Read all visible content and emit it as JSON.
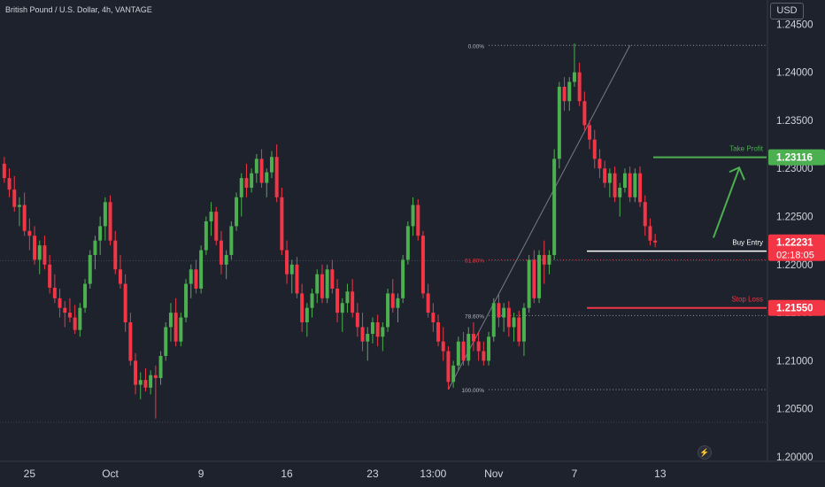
{
  "header": {
    "symbol_title": "British Pound / U.S. Dollar, 4h, VANTAGE",
    "currency": "USD"
  },
  "chart_data": {
    "type": "candlestick",
    "title": "British Pound / U.S. Dollar, 4h, VANTAGE",
    "ylim": [
      1.2,
      1.2466
    ],
    "y_ticks": [
      "1.24500",
      "1.24000",
      "1.23500",
      "1.23000",
      "1.22500",
      "1.22000",
      "1.21500",
      "1.21000",
      "1.20500",
      "1.20000"
    ],
    "y_tick_values": [
      1.245,
      1.24,
      1.235,
      1.23,
      1.225,
      1.22,
      1.215,
      1.21,
      1.205,
      1.2
    ],
    "x_ticks": [
      "25",
      "Oct",
      "9",
      "16",
      "23",
      "13:00",
      "Nov",
      "7",
      "13"
    ],
    "x_tick_candle_index": [
      5,
      21,
      39,
      56,
      73,
      85,
      97,
      113,
      130
    ],
    "candle_count": 140,
    "candles_ohlc": [
      [
        1.2305,
        1.2312,
        1.2285,
        1.229
      ],
      [
        1.229,
        1.23,
        1.227,
        1.2278
      ],
      [
        1.2278,
        1.2292,
        1.2255,
        1.226
      ],
      [
        1.226,
        1.227,
        1.224,
        1.2262
      ],
      [
        1.2262,
        1.2275,
        1.223,
        1.2235
      ],
      [
        1.2235,
        1.2248,
        1.2215,
        1.223
      ],
      [
        1.223,
        1.224,
        1.22,
        1.2205
      ],
      [
        1.2205,
        1.2225,
        1.219,
        1.222
      ],
      [
        1.222,
        1.223,
        1.2195,
        1.22
      ],
      [
        1.22,
        1.221,
        1.217,
        1.2176
      ],
      [
        1.2176,
        1.219,
        1.216,
        1.2165
      ],
      [
        1.2165,
        1.2175,
        1.2145,
        1.2155
      ],
      [
        1.2155,
        1.2162,
        1.2135,
        1.215
      ],
      [
        1.215,
        1.2165,
        1.214,
        1.2145
      ],
      [
        1.2145,
        1.2158,
        1.2128,
        1.2132
      ],
      [
        1.2132,
        1.216,
        1.2125,
        1.2155
      ],
      [
        1.2155,
        1.2185,
        1.215,
        1.218
      ],
      [
        1.218,
        1.2215,
        1.2175,
        1.221
      ],
      [
        1.221,
        1.223,
        1.2195,
        1.2225
      ],
      [
        1.2225,
        1.225,
        1.221,
        1.224
      ],
      [
        1.224,
        1.227,
        1.2225,
        1.2265
      ],
      [
        1.2265,
        1.2272,
        1.222,
        1.2225
      ],
      [
        1.2225,
        1.2235,
        1.219,
        1.2195
      ],
      [
        1.2195,
        1.221,
        1.2175,
        1.218
      ],
      [
        1.218,
        1.219,
        1.213,
        1.214
      ],
      [
        1.214,
        1.215,
        1.2095,
        1.21
      ],
      [
        1.21,
        1.2108,
        1.2065,
        1.2075
      ],
      [
        1.2075,
        1.2088,
        1.206,
        1.208
      ],
      [
        1.208,
        1.2092,
        1.2068,
        1.2072
      ],
      [
        1.2072,
        1.209,
        1.2065,
        1.2085
      ],
      [
        1.2085,
        1.2095,
        1.204,
        1.2082
      ],
      [
        1.2082,
        1.211,
        1.2075,
        1.2105
      ],
      [
        1.2105,
        1.214,
        1.21,
        1.2135
      ],
      [
        1.2135,
        1.216,
        1.212,
        1.215
      ],
      [
        1.215,
        1.2165,
        1.2115,
        1.212
      ],
      [
        1.212,
        1.215,
        1.2115,
        1.2145
      ],
      [
        1.2145,
        1.2185,
        1.214,
        1.218
      ],
      [
        1.218,
        1.22,
        1.2165,
        1.2195
      ],
      [
        1.2195,
        1.2205,
        1.217,
        1.2175
      ],
      [
        1.2175,
        1.222,
        1.217,
        1.2215
      ],
      [
        1.2215,
        1.225,
        1.221,
        1.2245
      ],
      [
        1.2245,
        1.2265,
        1.223,
        1.2255
      ],
      [
        1.2255,
        1.226,
        1.222,
        1.2225
      ],
      [
        1.2225,
        1.2235,
        1.219,
        1.22
      ],
      [
        1.22,
        1.2215,
        1.2185,
        1.221
      ],
      [
        1.221,
        1.2245,
        1.2205,
        1.224
      ],
      [
        1.224,
        1.2275,
        1.2235,
        1.227
      ],
      [
        1.227,
        1.2295,
        1.225,
        1.229
      ],
      [
        1.229,
        1.2305,
        1.227,
        1.228
      ],
      [
        1.228,
        1.23,
        1.2275,
        1.2295
      ],
      [
        1.2295,
        1.2315,
        1.2285,
        1.231
      ],
      [
        1.231,
        1.232,
        1.228,
        1.2285
      ],
      [
        1.2285,
        1.23,
        1.227,
        1.2296
      ],
      [
        1.2296,
        1.2318,
        1.229,
        1.2312
      ],
      [
        1.2312,
        1.2325,
        1.2265,
        1.227
      ],
      [
        1.227,
        1.228,
        1.221,
        1.2215
      ],
      [
        1.2215,
        1.2225,
        1.218,
        1.219
      ],
      [
        1.219,
        1.2205,
        1.217,
        1.22
      ],
      [
        1.22,
        1.2208,
        1.2165,
        1.217
      ],
      [
        1.217,
        1.218,
        1.213,
        1.214
      ],
      [
        1.214,
        1.216,
        1.2125,
        1.2155
      ],
      [
        1.2155,
        1.2175,
        1.2145,
        1.217
      ],
      [
        1.217,
        1.2195,
        1.216,
        1.219
      ],
      [
        1.219,
        1.22,
        1.216,
        1.2165
      ],
      [
        1.2165,
        1.22,
        1.216,
        1.2195
      ],
      [
        1.2195,
        1.2205,
        1.217,
        1.2175
      ],
      [
        1.2175,
        1.2185,
        1.214,
        1.215
      ],
      [
        1.215,
        1.2165,
        1.213,
        1.216
      ],
      [
        1.216,
        1.218,
        1.215,
        1.2172
      ],
      [
        1.2172,
        1.2185,
        1.2145,
        1.215
      ],
      [
        1.215,
        1.216,
        1.2125,
        1.2135
      ],
      [
        1.2135,
        1.215,
        1.211,
        1.212
      ],
      [
        1.212,
        1.2135,
        1.21,
        1.2128
      ],
      [
        1.2128,
        1.2145,
        1.2118,
        1.214
      ],
      [
        1.214,
        1.2148,
        1.2115,
        1.2125
      ],
      [
        1.2125,
        1.214,
        1.211,
        1.2135
      ],
      [
        1.2135,
        1.2175,
        1.213,
        1.217
      ],
      [
        1.217,
        1.2185,
        1.215,
        1.2155
      ],
      [
        1.2155,
        1.217,
        1.214,
        1.2165
      ],
      [
        1.2165,
        1.221,
        1.216,
        1.2205
      ],
      [
        1.2205,
        1.2245,
        1.22,
        1.224
      ],
      [
        1.224,
        1.227,
        1.223,
        1.2262
      ],
      [
        1.2262,
        1.2268,
        1.2225,
        1.223
      ],
      [
        1.223,
        1.2235,
        1.2165,
        1.217
      ],
      [
        1.217,
        1.218,
        1.2145,
        1.215
      ],
      [
        1.215,
        1.216,
        1.213,
        1.214
      ],
      [
        1.214,
        1.2148,
        1.2115,
        1.212
      ],
      [
        1.212,
        1.2135,
        1.21,
        1.211
      ],
      [
        1.211,
        1.2115,
        1.207,
        1.2078
      ],
      [
        1.2078,
        1.21,
        1.2072,
        1.2095
      ],
      [
        1.2095,
        1.2125,
        1.209,
        1.212
      ],
      [
        1.212,
        1.213,
        1.2095,
        1.21
      ],
      [
        1.21,
        1.2135,
        1.2095,
        1.2128
      ],
      [
        1.2128,
        1.214,
        1.211,
        1.212
      ],
      [
        1.212,
        1.213,
        1.21,
        1.211
      ],
      [
        1.211,
        1.212,
        1.2095,
        1.21
      ],
      [
        1.21,
        1.213,
        1.2095,
        1.2125
      ],
      [
        1.2125,
        1.2165,
        1.212,
        1.216
      ],
      [
        1.216,
        1.217,
        1.2135,
        1.2145
      ],
      [
        1.2145,
        1.216,
        1.213,
        1.2155
      ],
      [
        1.2155,
        1.2162,
        1.2125,
        1.2135
      ],
      [
        1.2135,
        1.215,
        1.212,
        1.2145
      ],
      [
        1.2145,
        1.2152,
        1.2115,
        1.212
      ],
      [
        1.212,
        1.216,
        1.2105,
        1.2155
      ],
      [
        1.2155,
        1.221,
        1.215,
        1.2205
      ],
      [
        1.2205,
        1.2215,
        1.216,
        1.2165
      ],
      [
        1.2165,
        1.2215,
        1.216,
        1.221
      ],
      [
        1.221,
        1.2225,
        1.218,
        1.22
      ],
      [
        1.22,
        1.2215,
        1.219,
        1.221
      ],
      [
        1.221,
        1.232,
        1.2205,
        1.231
      ],
      [
        1.231,
        1.239,
        1.23,
        1.2385
      ],
      [
        1.2385,
        1.2395,
        1.236,
        1.237
      ],
      [
        1.237,
        1.2395,
        1.236,
        1.239
      ],
      [
        1.239,
        1.243,
        1.2385,
        1.24
      ],
      [
        1.24,
        1.241,
        1.2365,
        1.237
      ],
      [
        1.237,
        1.238,
        1.234,
        1.2345
      ],
      [
        1.2345,
        1.235,
        1.232,
        1.233
      ],
      [
        1.233,
        1.234,
        1.23,
        1.231
      ],
      [
        1.231,
        1.232,
        1.229,
        1.23
      ],
      [
        1.23,
        1.2308,
        1.228,
        1.2285
      ],
      [
        1.2285,
        1.23,
        1.227,
        1.2295
      ],
      [
        1.2295,
        1.2302,
        1.2265,
        1.227
      ],
      [
        1.227,
        1.2285,
        1.225,
        1.228
      ],
      [
        1.228,
        1.23,
        1.2275,
        1.2295
      ],
      [
        1.2295,
        1.2302,
        1.2265,
        1.227
      ],
      [
        1.227,
        1.23,
        1.2265,
        1.2295
      ],
      [
        1.2295,
        1.2302,
        1.226,
        1.2265
      ],
      [
        1.2265,
        1.2272,
        1.223,
        1.224
      ],
      [
        1.224,
        1.2248,
        1.222,
        1.2225
      ],
      [
        1.2225,
        1.2232,
        1.2218,
        1.2223
      ]
    ],
    "fibonacci": {
      "levels": [
        {
          "label": "0.00%",
          "price": 1.2428
        },
        {
          "label": "61.80%",
          "price": 1.2205
        },
        {
          "label": "78.60%",
          "price": 1.2147
        },
        {
          "label": "100.00%",
          "price": 1.207
        }
      ]
    },
    "trade_setup": {
      "take_profit": {
        "label": "Take Profit",
        "price": 1.23116,
        "price_text": "1.23116",
        "color": "#4caf50"
      },
      "buy_entry": {
        "label": "Buy Entry",
        "price": 1.2214,
        "color": "#ffffff"
      },
      "stop_loss": {
        "label": "Stop Loss",
        "price": 1.2155,
        "price_text": "1.21550",
        "color": "#f23645"
      }
    },
    "last_price": {
      "price": 1.22231,
      "price_text": "1.22231",
      "countdown": "02:18:05",
      "color": "#f23645"
    },
    "colors": {
      "background": "#1e222d",
      "up": "#4caf50",
      "down": "#f23645",
      "axis_text": "#d1d4dc",
      "separator": "#363a45"
    },
    "grid": false
  }
}
